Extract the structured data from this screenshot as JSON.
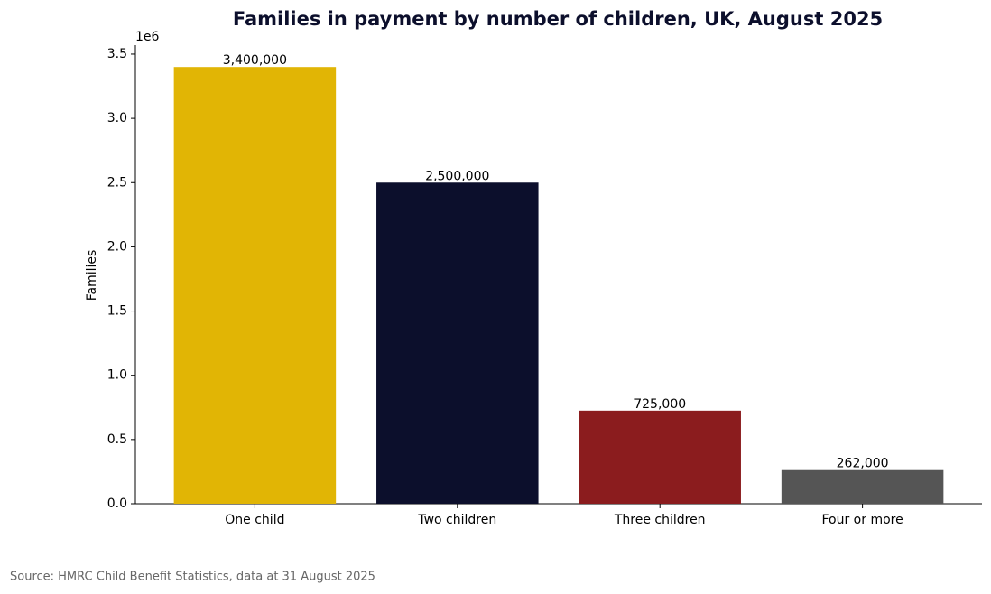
{
  "chart_data": {
    "type": "bar",
    "title": "Families in payment by number of children, UK, August 2025",
    "y_label": "Families",
    "y_offset_label": "1e6",
    "source": "Source: HMRC Child Benefit Statistics, data at 31 August 2025",
    "categories": [
      "One child",
      "Two children",
      "Three children",
      "Four or more"
    ],
    "values": [
      3400000,
      2500000,
      725000,
      262000
    ],
    "value_labels": [
      "3,400,000",
      "2,500,000",
      "725,000",
      "262,000"
    ],
    "colors": [
      "#e1b505",
      "#0c0f2c",
      "#8b1c1e",
      "#555555"
    ],
    "ylim": [
      0,
      3570000
    ],
    "yticks": [
      {
        "value": 0,
        "label": "0.0"
      },
      {
        "value": 500000,
        "label": "0.5"
      },
      {
        "value": 1000000,
        "label": "1.0"
      },
      {
        "value": 1500000,
        "label": "1.5"
      },
      {
        "value": 2000000,
        "label": "2.0"
      },
      {
        "value": 2500000,
        "label": "2.5"
      },
      {
        "value": 3000000,
        "label": "3.0"
      },
      {
        "value": 3500000,
        "label": "3.5"
      }
    ],
    "grid": false
  }
}
